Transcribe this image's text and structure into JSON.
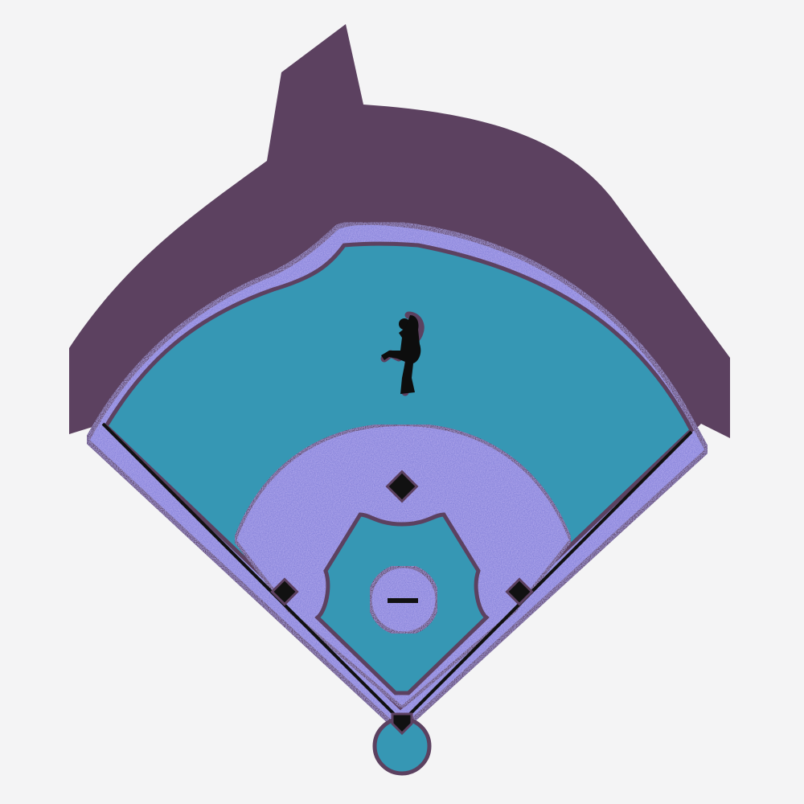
{
  "colors": {
    "background": "#f4f4f5",
    "stands": "#5c4160",
    "grass": "#3697b4",
    "dirt_base": "#8a86dc",
    "dirt_speck_a": "#6f63c8",
    "dirt_speck_b": "#b7b5f2",
    "outline": "#5c4160",
    "base": "#111111",
    "foul_line": "#111111",
    "silhouette": "#0d0d0d"
  },
  "elements": {
    "stands": "stands",
    "outfield_grass": "outfield-grass",
    "warning_track": "warning-track",
    "infield_dirt": "infield-dirt",
    "infield_grass": "infield-grass",
    "pitchers_mound": "pitchers-mound",
    "pitching_rubber": "pitching-rubber",
    "home_plate": "home-plate",
    "first_base": "first-base",
    "second_base": "second-base",
    "third_base": "third-base",
    "left_foul_line": "left-foul-line",
    "right_foul_line": "right-foul-line",
    "pitcher_icon": "pitcher-silhouette-icon"
  }
}
